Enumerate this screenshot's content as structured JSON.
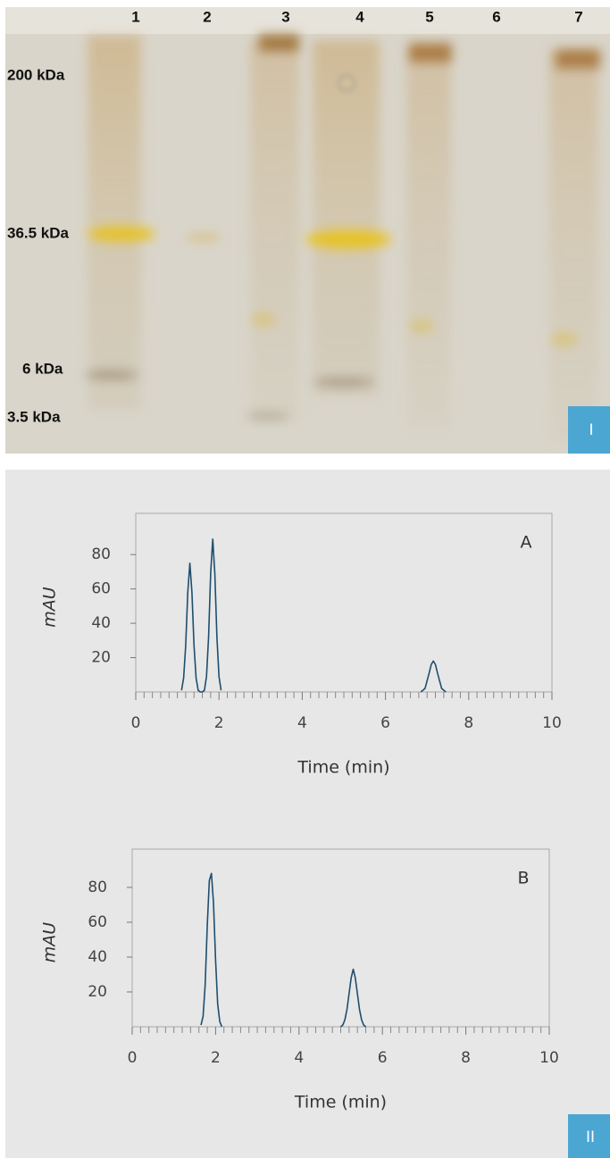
{
  "gel": {
    "lane_labels": [
      "1",
      "2",
      "3",
      "4",
      "5",
      "6",
      "7"
    ],
    "markers": [
      "200 kDa",
      "36.5 kDa",
      "6 kDa",
      "3.5 kDa"
    ],
    "panel_label": "I"
  },
  "chart_panel_label": "II",
  "chart_data": [
    {
      "type": "line",
      "annotation": "A",
      "xlabel": "Time (min)",
      "ylabel": "mAU",
      "x": [
        1.1,
        1.15,
        1.2,
        1.25,
        1.3,
        1.35,
        1.4,
        1.45,
        1.5,
        1.55,
        1.6,
        1.65,
        1.7,
        1.75,
        1.8,
        1.85,
        1.9,
        1.95,
        2.0,
        2.05,
        4.5,
        6.85,
        6.95,
        7.05,
        7.1,
        7.15,
        7.2,
        7.25,
        7.35,
        7.45
      ],
      "values": [
        1,
        8,
        27,
        58,
        75,
        58,
        27,
        8,
        1,
        0,
        0,
        1,
        9,
        32,
        69,
        89,
        69,
        32,
        9,
        1,
        null,
        0,
        2,
        11,
        16,
        18,
        16,
        11,
        2,
        0
      ],
      "color": "#1f4e6e",
      "xlim": [
        0,
        10
      ],
      "ylim": [
        0,
        104
      ],
      "xticks": [
        0,
        2,
        4,
        6,
        8,
        10
      ],
      "yticks": [
        20,
        40,
        60,
        80
      ]
    },
    {
      "type": "line",
      "annotation": "B",
      "xlabel": "Time (min)",
      "ylabel": "mAU",
      "x": [
        1.65,
        1.7,
        1.75,
        1.8,
        1.85,
        1.9,
        1.95,
        2.0,
        2.05,
        2.1,
        2.15,
        3.5,
        5.0,
        5.05,
        5.1,
        5.15,
        5.2,
        5.25,
        5.3,
        5.35,
        5.4,
        5.45,
        5.5,
        5.55,
        5.6
      ],
      "values": [
        1,
        6,
        24,
        58,
        84,
        88,
        71,
        38,
        13,
        3,
        0,
        null,
        0,
        1,
        4,
        10,
        19,
        28,
        33,
        28,
        19,
        10,
        4,
        1,
        0
      ],
      "color": "#1f4e6e",
      "xlim": [
        0,
        10
      ],
      "ylim": [
        0,
        102
      ],
      "xticks": [
        0,
        2,
        4,
        6,
        8,
        10
      ],
      "yticks": [
        20,
        40,
        60,
        80
      ]
    }
  ]
}
